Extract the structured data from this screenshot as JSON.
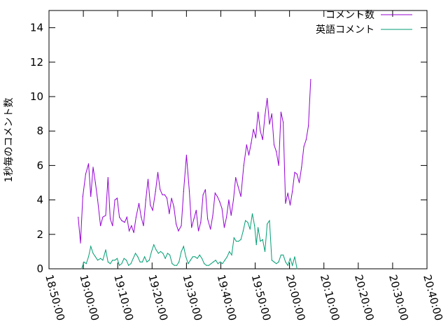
{
  "chart_data": {
    "type": "line",
    "title": "",
    "xlabel": "",
    "ylabel": "1秒毎のコメント数",
    "ylim": [
      0,
      15
    ],
    "y_ticks": [
      0,
      2,
      4,
      6,
      8,
      10,
      12,
      14
    ],
    "x_range": [
      "18:50:00",
      "20:40:00"
    ],
    "x_ticks": [
      "18:50:00",
      "19:00:00",
      "19:10:00",
      "19:20:00",
      "19:30:00",
      "19:40:00",
      "19:50:00",
      "20:00:00",
      "20:10:00",
      "20:20:00",
      "20:30:00",
      "20:40:00"
    ],
    "grid": false,
    "legend_position": "top-right",
    "series": [
      {
        "name": "コメント数",
        "color": "#9400d3",
        "points": [
          [
            "18:58:30",
            3.0
          ],
          [
            "18:59:10",
            1.5
          ],
          [
            "18:59:50",
            4.2
          ],
          [
            "19:00:40",
            5.5
          ],
          [
            "19:01:30",
            6.1
          ],
          [
            "19:02:10",
            4.2
          ],
          [
            "19:02:50",
            5.9
          ],
          [
            "19:03:30",
            5.0
          ],
          [
            "19:04:10",
            4.0
          ],
          [
            "19:05:00",
            2.5
          ],
          [
            "19:05:40",
            3.0
          ],
          [
            "19:06:30",
            3.1
          ],
          [
            "19:07:10",
            5.3
          ],
          [
            "19:07:50",
            2.9
          ],
          [
            "19:08:30",
            2.5
          ],
          [
            "19:09:10",
            4.0
          ],
          [
            "19:09:50",
            4.1
          ],
          [
            "19:10:30",
            3.0
          ],
          [
            "19:11:10",
            2.8
          ],
          [
            "19:12:00",
            2.7
          ],
          [
            "19:12:40",
            3.0
          ],
          [
            "19:13:20",
            2.2
          ],
          [
            "19:14:00",
            2.5
          ],
          [
            "19:14:40",
            2.1
          ],
          [
            "19:15:20",
            3.0
          ],
          [
            "19:16:10",
            3.8
          ],
          [
            "19:16:50",
            3.0
          ],
          [
            "19:17:30",
            2.5
          ],
          [
            "19:18:10",
            4.0
          ],
          [
            "19:18:50",
            5.2
          ],
          [
            "19:19:30",
            3.7
          ],
          [
            "19:20:10",
            3.4
          ],
          [
            "19:21:00",
            4.5
          ],
          [
            "19:21:40",
            5.6
          ],
          [
            "19:22:20",
            4.6
          ],
          [
            "19:23:00",
            4.3
          ],
          [
            "19:23:40",
            4.3
          ],
          [
            "19:24:20",
            4.1
          ],
          [
            "19:25:00",
            3.2
          ],
          [
            "19:25:40",
            4.1
          ],
          [
            "19:26:20",
            3.6
          ],
          [
            "19:27:00",
            2.6
          ],
          [
            "19:27:40",
            2.2
          ],
          [
            "19:28:30",
            2.5
          ],
          [
            "19:29:10",
            4.5
          ],
          [
            "19:30:00",
            6.6
          ],
          [
            "19:30:50",
            4.5
          ],
          [
            "19:31:30",
            2.4
          ],
          [
            "19:32:10",
            2.9
          ],
          [
            "19:32:50",
            3.4
          ],
          [
            "19:33:30",
            2.2
          ],
          [
            "19:34:10",
            2.7
          ],
          [
            "19:34:50",
            4.3
          ],
          [
            "19:35:30",
            4.6
          ],
          [
            "19:36:10",
            2.9
          ],
          [
            "19:37:00",
            2.3
          ],
          [
            "19:37:40",
            3.1
          ],
          [
            "19:38:20",
            4.4
          ],
          [
            "19:39:00",
            4.2
          ],
          [
            "19:39:40",
            3.9
          ],
          [
            "19:40:20",
            3.5
          ],
          [
            "19:41:00",
            2.4
          ],
          [
            "19:41:40",
            3.0
          ],
          [
            "19:42:20",
            4.0
          ],
          [
            "19:43:00",
            3.1
          ],
          [
            "19:43:40",
            4.0
          ],
          [
            "19:44:20",
            5.3
          ],
          [
            "19:45:00",
            4.8
          ],
          [
            "19:45:50",
            4.2
          ],
          [
            "19:46:40",
            6.0
          ],
          [
            "19:47:30",
            7.2
          ],
          [
            "19:48:10",
            6.6
          ],
          [
            "19:48:50",
            7.3
          ],
          [
            "19:49:30",
            8.1
          ],
          [
            "19:50:10",
            7.6
          ],
          [
            "19:50:50",
            9.1
          ],
          [
            "19:51:30",
            8.0
          ],
          [
            "19:52:10",
            7.5
          ],
          [
            "19:52:50",
            8.9
          ],
          [
            "19:53:30",
            9.9
          ],
          [
            "19:54:10",
            8.4
          ],
          [
            "19:54:50",
            9.0
          ],
          [
            "19:55:30",
            7.2
          ],
          [
            "19:56:10",
            6.8
          ],
          [
            "19:56:50",
            6.0
          ],
          [
            "19:57:30",
            9.1
          ],
          [
            "19:58:10",
            8.5
          ],
          [
            "19:58:50",
            3.8
          ],
          [
            "19:59:30",
            4.4
          ],
          [
            "20:00:10",
            3.7
          ],
          [
            "20:00:50",
            4.5
          ],
          [
            "20:01:30",
            5.6
          ],
          [
            "20:02:10",
            5.5
          ],
          [
            "20:02:50",
            5.0
          ],
          [
            "20:03:30",
            5.9
          ],
          [
            "20:04:10",
            7.1
          ],
          [
            "20:04:50",
            7.5
          ],
          [
            "20:05:30",
            8.3
          ],
          [
            "20:06:10",
            11.0
          ]
        ]
      },
      {
        "name": "英語コメント",
        "color": "#009e73",
        "points": [
          [
            "18:59:30",
            0.0
          ],
          [
            "19:00:10",
            0.4
          ],
          [
            "19:00:50",
            0.3
          ],
          [
            "19:01:30",
            0.7
          ],
          [
            "19:02:10",
            1.3
          ],
          [
            "19:02:50",
            0.9
          ],
          [
            "19:03:30",
            0.7
          ],
          [
            "19:04:10",
            0.5
          ],
          [
            "19:05:00",
            0.6
          ],
          [
            "19:05:40",
            0.5
          ],
          [
            "19:06:30",
            1.1
          ],
          [
            "19:07:10",
            0.4
          ],
          [
            "19:07:50",
            0.3
          ],
          [
            "19:08:30",
            0.5
          ],
          [
            "19:09:10",
            0.5
          ],
          [
            "19:09:50",
            0.6
          ],
          [
            "19:10:30",
            0.2
          ],
          [
            "19:11:10",
            0.3
          ],
          [
            "19:11:50",
            0.6
          ],
          [
            "19:12:30",
            0.5
          ],
          [
            "19:13:10",
            0.2
          ],
          [
            "19:13:50",
            0.3
          ],
          [
            "19:14:30",
            0.6
          ],
          [
            "19:15:10",
            0.9
          ],
          [
            "19:15:50",
            0.7
          ],
          [
            "19:16:30",
            0.4
          ],
          [
            "19:17:10",
            0.4
          ],
          [
            "19:17:50",
            0.7
          ],
          [
            "19:18:30",
            0.4
          ],
          [
            "19:19:10",
            0.5
          ],
          [
            "19:19:50",
            1.0
          ],
          [
            "19:20:30",
            1.4
          ],
          [
            "19:21:10",
            1.1
          ],
          [
            "19:21:50",
            0.9
          ],
          [
            "19:22:30",
            1.0
          ],
          [
            "19:23:10",
            0.9
          ],
          [
            "19:23:50",
            0.6
          ],
          [
            "19:24:30",
            0.9
          ],
          [
            "19:25:10",
            0.8
          ],
          [
            "19:25:50",
            0.3
          ],
          [
            "19:26:30",
            0.2
          ],
          [
            "19:27:10",
            0.2
          ],
          [
            "19:27:50",
            0.4
          ],
          [
            "19:28:30",
            1.0
          ],
          [
            "19:29:10",
            1.3
          ],
          [
            "19:29:50",
            0.7
          ],
          [
            "19:30:30",
            0.3
          ],
          [
            "19:31:10",
            0.5
          ],
          [
            "19:31:50",
            0.7
          ],
          [
            "19:32:30",
            0.7
          ],
          [
            "19:33:10",
            0.6
          ],
          [
            "19:33:50",
            0.8
          ],
          [
            "19:34:30",
            0.6
          ],
          [
            "19:35:10",
            0.3
          ],
          [
            "19:35:50",
            0.2
          ],
          [
            "19:36:30",
            0.2
          ],
          [
            "19:37:10",
            0.3
          ],
          [
            "19:37:50",
            0.4
          ],
          [
            "19:38:30",
            0.5
          ],
          [
            "19:39:10",
            0.3
          ],
          [
            "19:39:50",
            0.4
          ],
          [
            "19:40:30",
            0.3
          ],
          [
            "19:41:10",
            0.5
          ],
          [
            "19:41:50",
            0.7
          ],
          [
            "19:42:30",
            1.0
          ],
          [
            "19:43:10",
            0.8
          ],
          [
            "19:43:50",
            1.8
          ],
          [
            "19:44:30",
            1.6
          ],
          [
            "19:45:10",
            1.6
          ],
          [
            "19:45:50",
            1.7
          ],
          [
            "19:46:30",
            2.2
          ],
          [
            "19:47:10",
            2.8
          ],
          [
            "19:47:50",
            2.7
          ],
          [
            "19:48:30",
            2.3
          ],
          [
            "19:49:10",
            3.2
          ],
          [
            "19:49:50",
            2.5
          ],
          [
            "19:50:20",
            1.4
          ],
          [
            "19:50:50",
            2.4
          ],
          [
            "19:51:30",
            1.6
          ],
          [
            "19:52:10",
            1.7
          ],
          [
            "19:52:50",
            1.0
          ],
          [
            "19:53:30",
            2.6
          ],
          [
            "19:54:10",
            2.8
          ],
          [
            "19:54:50",
            0.5
          ],
          [
            "19:55:30",
            0.4
          ],
          [
            "19:56:10",
            0.3
          ],
          [
            "19:56:50",
            0.4
          ],
          [
            "19:57:30",
            0.8
          ],
          [
            "19:58:10",
            0.8
          ],
          [
            "19:58:50",
            0.4
          ],
          [
            "19:59:30",
            0.2
          ],
          [
            "20:00:10",
            0.6
          ],
          [
            "20:00:50",
            0.2
          ],
          [
            "20:01:30",
            0.7
          ],
          [
            "20:02:10",
            0.0
          ]
        ]
      }
    ]
  }
}
